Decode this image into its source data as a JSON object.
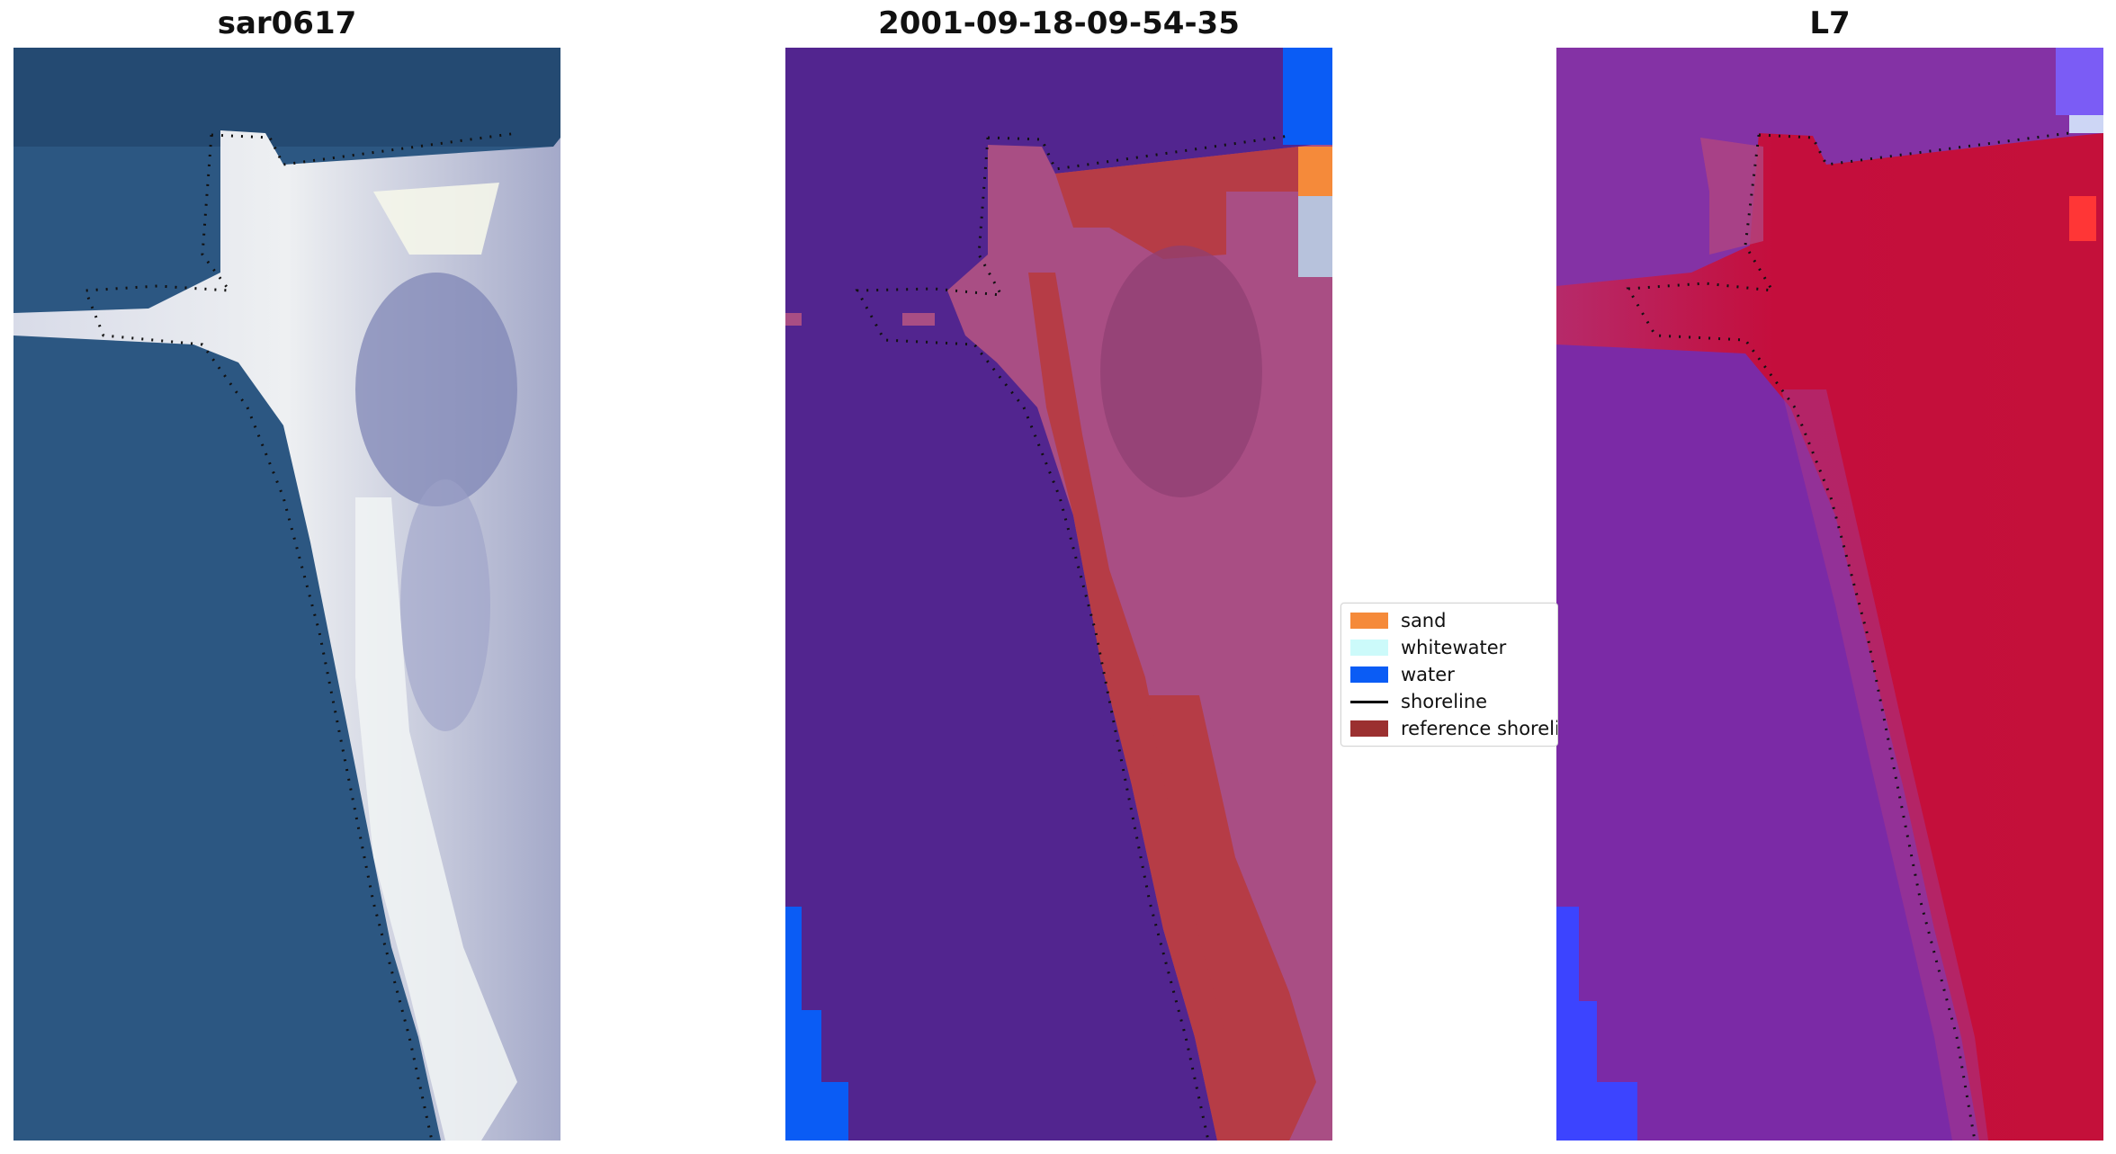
{
  "panels": [
    {
      "title": "sar0617"
    },
    {
      "title": "2001-09-18-09-54-35"
    },
    {
      "title": "L7"
    }
  ],
  "legend": {
    "items": [
      {
        "label": "sand",
        "color": "#f58a3a",
        "kind": "patch"
      },
      {
        "label": "whitewater",
        "color": "#ccfafa",
        "kind": "patch"
      },
      {
        "label": "water",
        "color": "#0a5cf5",
        "kind": "patch"
      },
      {
        "label": "shoreline",
        "color": "#000000",
        "kind": "line"
      },
      {
        "label": "reference shoreline",
        "color": "#9b3030",
        "kind": "patch"
      }
    ]
  },
  "colors": {
    "rgb_water": "#2b5680",
    "rgb_land": "#c8cbe0",
    "class_background": "#52258f",
    "class_land": "#a94e84",
    "class_reference": "#b63c46",
    "l7_background": "#7a2aa6",
    "l7_land": "#c0103a",
    "l7_water": "#3c44ff"
  }
}
